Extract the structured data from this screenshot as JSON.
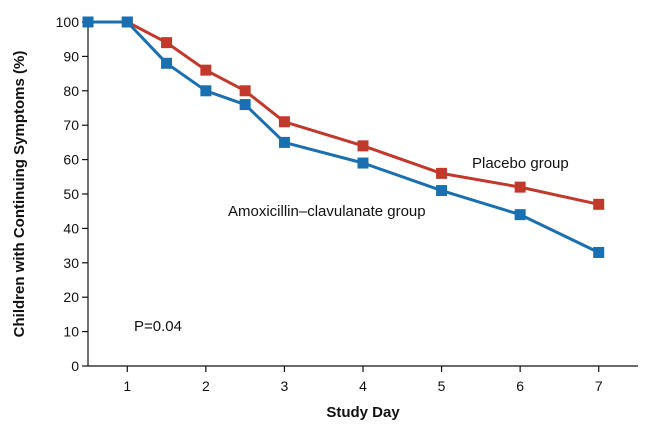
{
  "chart_data": {
    "type": "line",
    "title": "",
    "xlabel": "Study Day",
    "ylabel": "Children with Continuing Symptoms (%)",
    "xlim": [
      0.5,
      7.5
    ],
    "ylim": [
      0,
      100
    ],
    "x_ticks": [
      1,
      2,
      3,
      4,
      5,
      6,
      7
    ],
    "y_ticks": [
      0,
      10,
      20,
      30,
      40,
      50,
      60,
      70,
      80,
      90,
      100
    ],
    "grid": false,
    "series": [
      {
        "name": "Placebo group",
        "color": "#c0392b",
        "x": [
          0.5,
          1,
          1.5,
          2,
          2.5,
          3,
          4,
          5,
          6,
          7
        ],
        "y": [
          100,
          100,
          94,
          86,
          80,
          71,
          64,
          56,
          52,
          47
        ]
      },
      {
        "name": "Amoxicillin–clavulanate group",
        "color": "#1a6fb0",
        "x": [
          0.5,
          1,
          1.5,
          2,
          2.5,
          3,
          4,
          5,
          6,
          7
        ],
        "y": [
          100,
          100,
          88,
          80,
          76,
          65,
          59,
          51,
          44,
          33
        ]
      }
    ],
    "annotations": [
      {
        "text": "P=0.04"
      }
    ]
  }
}
